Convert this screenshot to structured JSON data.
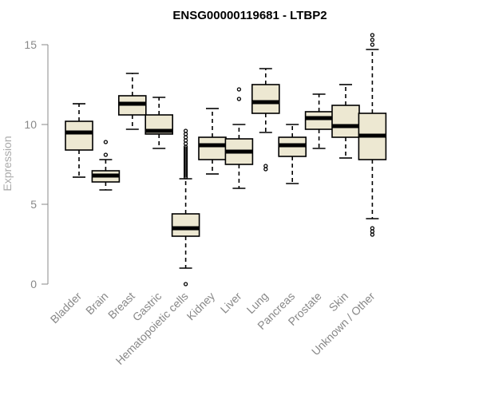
{
  "chart_data": {
    "type": "boxplot",
    "title": "ENSG00000119681 - LTBP2",
    "xlabel": "",
    "ylabel": "Expression",
    "ylim": [
      0,
      15
    ],
    "yticks": [
      "0",
      "5",
      "10",
      "15"
    ],
    "box_fill": "#ede8d2",
    "categories": [
      "Bladder",
      "Brain",
      "Breast",
      "Gastric",
      "Hematopoietic cells",
      "Kidney",
      "Liver",
      "Lung",
      "Pancreas",
      "Prostate",
      "Skin",
      "Unknown / Other"
    ],
    "boxes": [
      {
        "name": "Bladder",
        "whisker_low": 6.7,
        "q1": 8.4,
        "median": 9.5,
        "q3": 10.2,
        "whisker_high": 11.3,
        "outliers": []
      },
      {
        "name": "Brain",
        "whisker_low": 5.9,
        "q1": 6.4,
        "median": 6.8,
        "q3": 7.1,
        "whisker_high": 7.8,
        "outliers": [
          8.1,
          8.9
        ]
      },
      {
        "name": "Breast",
        "whisker_low": 9.7,
        "q1": 10.6,
        "median": 11.3,
        "q3": 11.8,
        "whisker_high": 13.2,
        "outliers": []
      },
      {
        "name": "Gastric",
        "whisker_low": 8.5,
        "q1": 9.4,
        "median": 9.6,
        "q3": 10.6,
        "whisker_high": 11.7,
        "outliers": []
      },
      {
        "name": "Hematopoietic cells",
        "whisker_low": 1.0,
        "q1": 3.0,
        "median": 3.5,
        "q3": 4.4,
        "whisker_high": 6.6,
        "outliers": [
          0.0,
          6.7,
          6.8,
          6.9,
          7.0,
          7.1,
          7.2,
          7.3,
          7.4,
          7.5,
          7.6,
          7.7,
          7.8,
          7.9,
          8.0,
          8.1,
          8.2,
          8.3,
          8.4,
          8.5,
          8.6,
          8.8,
          9.0,
          9.2,
          9.4,
          9.6
        ]
      },
      {
        "name": "Kidney",
        "whisker_low": 6.9,
        "q1": 7.8,
        "median": 8.7,
        "q3": 9.2,
        "whisker_high": 11.0,
        "outliers": []
      },
      {
        "name": "Liver",
        "whisker_low": 6.0,
        "q1": 7.5,
        "median": 8.3,
        "q3": 9.1,
        "whisker_high": 10.0,
        "outliers": [
          11.6,
          12.2
        ]
      },
      {
        "name": "Lung",
        "whisker_low": 9.5,
        "q1": 10.7,
        "median": 11.4,
        "q3": 12.5,
        "whisker_high": 13.5,
        "outliers": [
          7.2,
          7.4
        ]
      },
      {
        "name": "Pancreas",
        "whisker_low": 6.3,
        "q1": 8.0,
        "median": 8.7,
        "q3": 9.2,
        "whisker_high": 10.0,
        "outliers": []
      },
      {
        "name": "Prostate",
        "whisker_low": 8.5,
        "q1": 9.7,
        "median": 10.4,
        "q3": 10.8,
        "whisker_high": 11.9,
        "outliers": []
      },
      {
        "name": "Skin",
        "whisker_low": 7.9,
        "q1": 9.2,
        "median": 9.9,
        "q3": 11.2,
        "whisker_high": 12.5,
        "outliers": []
      },
      {
        "name": "Unknown / Other",
        "whisker_low": 4.1,
        "q1": 7.8,
        "median": 9.3,
        "q3": 10.7,
        "whisker_high": 14.7,
        "outliers": [
          3.1,
          3.3,
          3.5,
          15.0,
          15.3,
          15.6
        ]
      }
    ]
  }
}
